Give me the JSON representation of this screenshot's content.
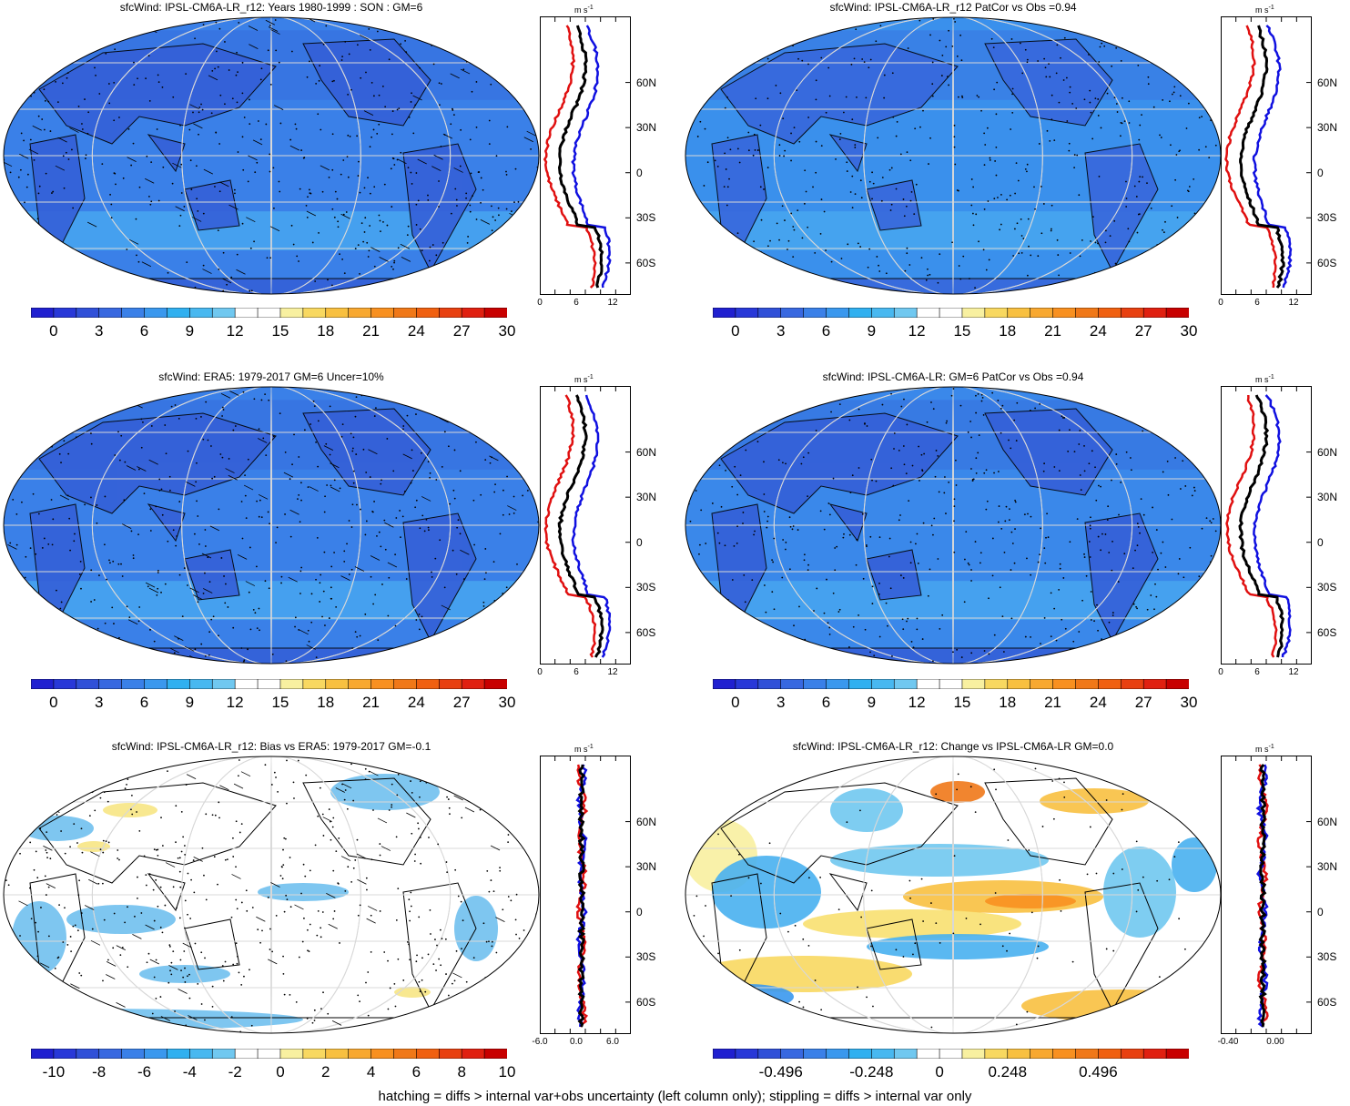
{
  "footnote": "hatching = diffs > internal var+obs uncertainty (left column only); stippling = diffs > internal var only",
  "scales": {
    "abs": {
      "labels": [
        "0",
        "3",
        "6",
        "9",
        "12",
        "15",
        "18",
        "21",
        "24",
        "27",
        "30"
      ],
      "colors": [
        "#2020d0",
        "#2838d8",
        "#3050d8",
        "#3868e0",
        "#3a80e8",
        "#3a98ee",
        "#30b0f0",
        "#48b8f0",
        "#70c8f0",
        "#ffffff",
        "#ffffff",
        "#f8f0a0",
        "#f8d860",
        "#f8c040",
        "#f8a830",
        "#f89020",
        "#f07818",
        "#f06010",
        "#e84010",
        "#e02010",
        "#c80000"
      ]
    },
    "bias": {
      "labels": [
        "-10",
        "-8",
        "-6",
        "-4",
        "-2",
        "0",
        "2",
        "4",
        "6",
        "8",
        "10"
      ],
      "colors": [
        "#2020d0",
        "#2838d8",
        "#3050d8",
        "#3868e0",
        "#3a80e8",
        "#3a98ee",
        "#30b0f0",
        "#48b8f0",
        "#70c8f0",
        "#ffffff",
        "#ffffff",
        "#f8f0a0",
        "#f8d860",
        "#f8c040",
        "#f8a830",
        "#f89020",
        "#f07818",
        "#f06010",
        "#e84010",
        "#e02010",
        "#c80000"
      ]
    },
    "change": {
      "labels": [
        "-0.496",
        "-0.248",
        "0",
        "0.248",
        "0.496"
      ],
      "colors": [
        "#2020d0",
        "#2838d8",
        "#3050d8",
        "#3868e0",
        "#3a80e8",
        "#3a98ee",
        "#30b0f0",
        "#48b8f0",
        "#70c8f0",
        "#ffffff",
        "#ffffff",
        "#f8f0a0",
        "#f8d860",
        "#f8c040",
        "#f8a830",
        "#f89020",
        "#f07818",
        "#f06010",
        "#e84010",
        "#e02010",
        "#c80000"
      ]
    }
  },
  "lat_labels": [
    "60N",
    "30N",
    "0",
    "30S",
    "60S"
  ],
  "unit_label": "m s",
  "unit_exp": "-1",
  "panels": [
    {
      "title": "sfcWind: IPSL-CM6A-LR_r12: Years 1980-1999 : SON : GM=6",
      "scale": "abs",
      "fill": "#3a80e8",
      "land": "#3560d8",
      "wind_ticks": [
        "0",
        "6",
        "12"
      ],
      "kind": "abs"
    },
    {
      "title": "sfcWind: IPSL-CM6A-LR_r12 PatCor vs Obs =0.94",
      "scale": "abs",
      "fill": "#3a90ec",
      "land": "#3868dc",
      "wind_ticks": [
        "0",
        "6",
        "12"
      ],
      "kind": "abs"
    },
    {
      "title": "sfcWind: ERA5: 1979-2017 GM=6 Uncer=10%",
      "scale": "abs",
      "fill": "#3a80e8",
      "land": "#3560d8",
      "wind_ticks": [
        "0",
        "6",
        "12"
      ],
      "kind": "abs"
    },
    {
      "title": "sfcWind: IPSL-CM6A-LR: GM=6 PatCor vs Obs =0.94",
      "scale": "abs",
      "fill": "#3a88ea",
      "land": "#3560d8",
      "wind_ticks": [
        "0",
        "6",
        "12"
      ],
      "kind": "abs"
    },
    {
      "title": "sfcWind: IPSL-CM6A-LR_r12: Bias vs ERA5: 1979-2017  GM=-0.1",
      "scale": "bias",
      "fill": "#ffffff",
      "land": "#ffffff",
      "wind_ticks": [
        "-6.0",
        "0.0",
        "6.0"
      ],
      "kind": "bias"
    },
    {
      "title": "sfcWind: IPSL-CM6A-LR_r12: Change vs IPSL-CM6A-LR GM=0.0",
      "scale": "change",
      "fill": "#ffffff",
      "land": "#ffffff",
      "wind_ticks": [
        "-0.40",
        "0.00"
      ],
      "kind": "change"
    }
  ]
}
